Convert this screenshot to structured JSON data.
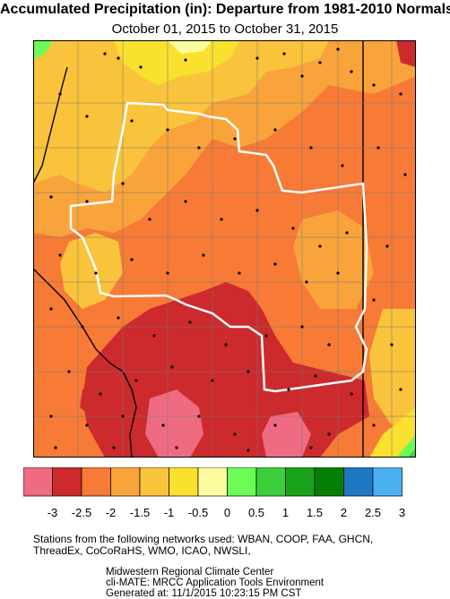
{
  "title": "Accumulated Precipitation (in): Departure from 1981-2010 Normals",
  "subtitle": "October 01, 2015 to October 31, 2015",
  "legend": {
    "ticks": [
      "-3",
      "-2.5",
      "-2",
      "-1.5",
      "-1",
      "-0.5",
      "0",
      "0.5",
      "1",
      "1.5",
      "2",
      "2.5",
      "3"
    ],
    "colors": [
      "#ee6b82",
      "#cc2a2d",
      "#f77a36",
      "#f9a43b",
      "#f9c43c",
      "#f9e12e",
      "#fbfb9e",
      "#6cfb57",
      "#3ccf3c",
      "#1aa21a",
      "#057e05",
      "#1e78c2",
      "#4ab0f0"
    ]
  },
  "networks_note": {
    "line1": "Stations from the following networks used: WBAN, COOP, FAA, GHCN,",
    "line2": "ThreadEx, CoCoRaHS, WMO, ICAO, NWSLI,"
  },
  "credits": {
    "line1": "Midwestern Regional Climate Center",
    "line2": "cli-MATE: MRCC Application Tools Environment",
    "line3": "Generated at: 11/1/2015 10:23:15 PM CST"
  },
  "map_colors": {
    "minus3": "#ee6b82",
    "minus2_5": "#cc2a2d",
    "minus2": "#f77a36",
    "minus1_5": "#f9a43b",
    "minus1": "#f9c43c",
    "minus0_5": "#f9e12e",
    "zero": "#fbfb9e",
    "plus0_5": "#6cfb57",
    "plus1": "#3ccf3c"
  }
}
